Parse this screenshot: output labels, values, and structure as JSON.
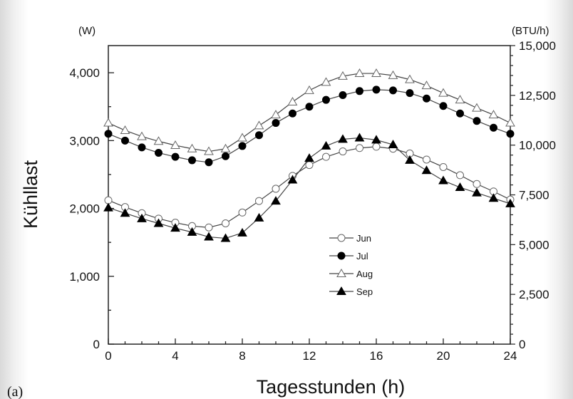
{
  "panel_label": "(a)",
  "chart_data": {
    "type": "line",
    "xlabel": "Tagesstunden (h)",
    "ylabel": "Kühllast",
    "y_unit_left": "(W)",
    "y_unit_right": "(BTU/h)",
    "xlim": [
      0,
      24
    ],
    "ylim": [
      0,
      4400
    ],
    "y2lim": [
      0,
      15000
    ],
    "x_ticks": [
      0,
      4,
      8,
      12,
      16,
      20,
      24
    ],
    "x_tick_labels": [
      "0",
      "4",
      "8",
      "12",
      "16",
      "20",
      "24"
    ],
    "y_ticks": [
      0,
      1000,
      2000,
      3000,
      4000
    ],
    "y_tick_labels": [
      "0",
      "1,000",
      "2,000",
      "3,000",
      "4,000"
    ],
    "y2_ticks": [
      0,
      2500,
      5000,
      7500,
      10000,
      12500,
      15000
    ],
    "y2_tick_labels": [
      "0",
      "2,500",
      "5,000",
      "7,500",
      "10,000",
      "12,500",
      "15,000"
    ],
    "legend_position": "center-right",
    "x": [
      0,
      1,
      2,
      3,
      4,
      5,
      6,
      7,
      8,
      9,
      10,
      11,
      12,
      13,
      14,
      15,
      16,
      17,
      18,
      19,
      20,
      21,
      22,
      23,
      24
    ],
    "series": [
      {
        "name": "Jun",
        "marker": "circle-open",
        "values": [
          2120,
          2020,
          1930,
          1850,
          1790,
          1740,
          1720,
          1780,
          1940,
          2110,
          2290,
          2480,
          2640,
          2760,
          2840,
          2890,
          2910,
          2880,
          2810,
          2720,
          2610,
          2490,
          2360,
          2250,
          2130
        ]
      },
      {
        "name": "Jul",
        "marker": "circle-filled",
        "values": [
          3100,
          3000,
          2900,
          2820,
          2760,
          2710,
          2680,
          2770,
          2920,
          3080,
          3260,
          3400,
          3500,
          3600,
          3670,
          3730,
          3750,
          3740,
          3700,
          3620,
          3510,
          3400,
          3290,
          3190,
          3100
        ]
      },
      {
        "name": "Aug",
        "marker": "triangle-open",
        "values": [
          3260,
          3150,
          3060,
          2990,
          2930,
          2880,
          2840,
          2880,
          3040,
          3220,
          3380,
          3570,
          3740,
          3860,
          3950,
          3990,
          3990,
          3960,
          3900,
          3810,
          3700,
          3600,
          3480,
          3380,
          3260
        ]
      },
      {
        "name": "Sep",
        "marker": "triangle-filled",
        "values": [
          2010,
          1930,
          1850,
          1780,
          1710,
          1650,
          1580,
          1560,
          1640,
          1860,
          2110,
          2420,
          2740,
          2920,
          3020,
          3040,
          3010,
          2940,
          2710,
          2560,
          2410,
          2310,
          2230,
          2150,
          2070
        ]
      }
    ]
  }
}
